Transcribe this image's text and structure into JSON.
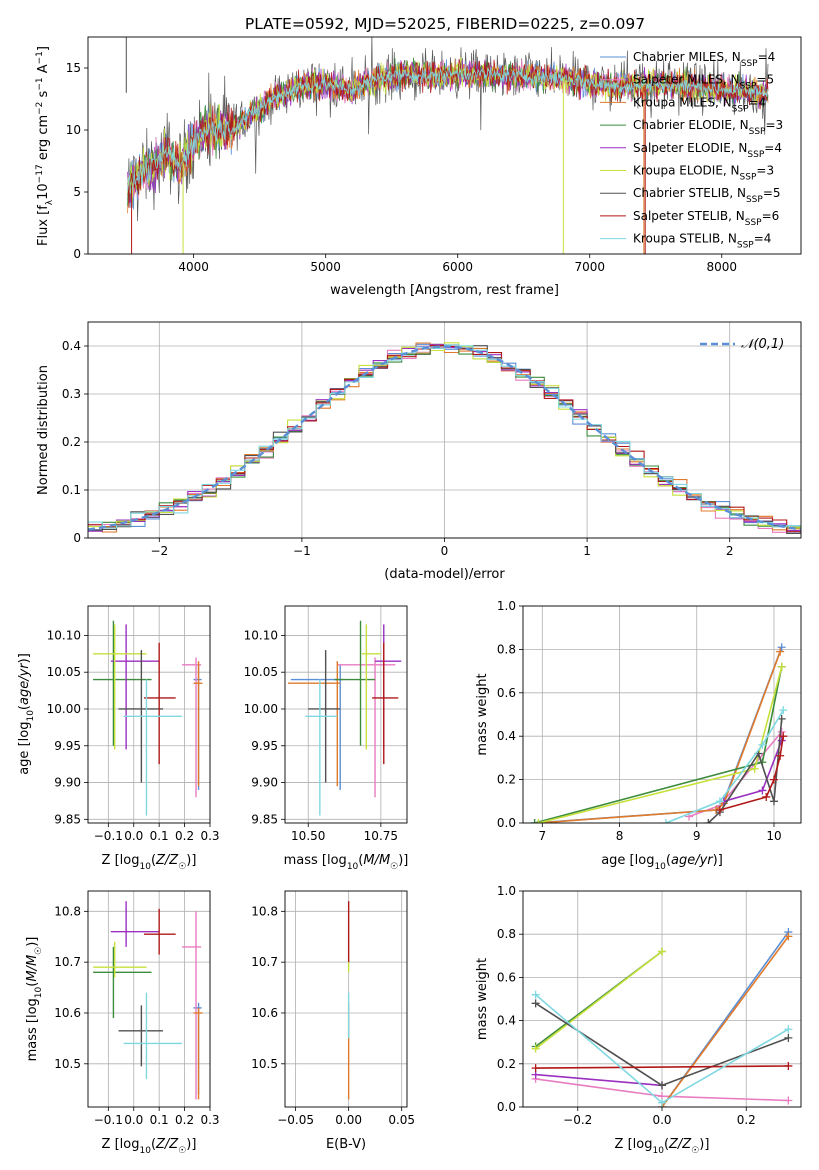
{
  "figure": {
    "title": "PLATE=0592, MJD=52025, FIBERID=0225, z=0.097"
  },
  "series_styles": [
    {
      "name": "Chabrier MILES",
      "nssp": "4",
      "color": "#5b8fd6"
    },
    {
      "name": "Salpeter MILES",
      "nssp": "5",
      "color": "#e87cc0"
    },
    {
      "name": "Kroupa MILES",
      "nssp": "4",
      "color": "#e07a2a"
    },
    {
      "name": "Chabrier ELODIE",
      "nssp": "3",
      "color": "#3c8c3c"
    },
    {
      "name": "Salpeter ELODIE",
      "nssp": "4",
      "color": "#9b2fc0"
    },
    {
      "name": "Kroupa ELODIE",
      "nssp": "3",
      "color": "#c6e03c"
    },
    {
      "name": "Chabrier STELIB",
      "nssp": "5",
      "color": "#505050"
    },
    {
      "name": "Salpeter STELIB",
      "nssp": "6",
      "color": "#b01818"
    },
    {
      "name": "Kroupa STELIB",
      "nssp": "4",
      "color": "#7fd8e0"
    }
  ],
  "chart_data": [
    {
      "id": "spectrum",
      "type": "line",
      "xlabel": "wavelength [Angstrom, rest frame]",
      "ylabel": "Flux [f_λ10^-17 erg cm^-2 s^-1 A^-1]",
      "xlim": [
        3200,
        8600
      ],
      "ylim": [
        0,
        17.5
      ],
      "xticks": [
        4000,
        5000,
        6000,
        7000,
        8000
      ],
      "yticks": [
        0,
        5,
        10,
        15
      ],
      "grid": false,
      "legend_position": "right",
      "x_range": [
        3500,
        8350
      ],
      "flux_profile": [
        [
          3500,
          5.2
        ],
        [
          3600,
          6.5
        ],
        [
          3700,
          7.0
        ],
        [
          3800,
          8.3
        ],
        [
          3900,
          7.0
        ],
        [
          4000,
          9.2
        ],
        [
          4100,
          10.0
        ],
        [
          4300,
          10.2
        ],
        [
          4400,
          11.0
        ],
        [
          4600,
          12.5
        ],
        [
          4800,
          13.5
        ],
        [
          5000,
          13.7
        ],
        [
          5200,
          13.2
        ],
        [
          5400,
          14.2
        ],
        [
          5600,
          14.5
        ],
        [
          5800,
          14.3
        ],
        [
          6000,
          14.6
        ],
        [
          6200,
          14.5
        ],
        [
          6500,
          14.3
        ],
        [
          6800,
          14.2
        ],
        [
          7000,
          13.8
        ],
        [
          7200,
          13.5
        ],
        [
          7500,
          13.7
        ],
        [
          7800,
          13.5
        ],
        [
          8100,
          13.2
        ],
        [
          8350,
          13.0
        ]
      ]
    },
    {
      "id": "residuals",
      "type": "step",
      "xlabel": "(data-model)/error",
      "ylabel": "Normed distribution",
      "xlim": [
        -2.5,
        2.5
      ],
      "ylim": [
        0,
        0.45
      ],
      "xticks": [
        -2,
        -1,
        0,
        1,
        2
      ],
      "yticks": [
        0.0,
        0.1,
        0.2,
        0.3,
        0.4
      ],
      "grid": true,
      "reference_curve": {
        "label": "𝒩(0,1)",
        "color": "#5b8fd6",
        "style": "dashed"
      }
    },
    {
      "id": "age_vs_Z",
      "type": "errorbar",
      "xlabel": "Z [log10(Z/Z☉)]",
      "ylabel": "age  [log10(age/yr)]",
      "xlim": [
        -0.18,
        0.3
      ],
      "ylim": [
        9.845,
        10.14
      ],
      "xticks": [
        -0.1,
        0.0,
        0.1,
        0.2,
        0.3
      ],
      "xticklabels": [
        "−0.1",
        "0.0",
        "0.1",
        "0.2",
        "0.3"
      ],
      "yticks": [
        9.85,
        9.9,
        9.95,
        10.0,
        10.05,
        10.1
      ],
      "yticklabels": [
        "9.85",
        "9.90",
        "9.95",
        "10.00",
        "10.05",
        "10.10"
      ],
      "grid": true,
      "points": [
        {
          "series": 0,
          "x": 0.255,
          "y": 10.04,
          "xerr": [
            0.02,
            0.012
          ],
          "yerr": [
            0.15,
            0.02
          ]
        },
        {
          "series": 1,
          "x": 0.245,
          "y": 10.06,
          "xerr": [
            0.055,
            0.02
          ],
          "yerr": [
            0.18,
            0.01
          ]
        },
        {
          "series": 2,
          "x": 0.255,
          "y": 10.035,
          "xerr": [
            0.02,
            0.015
          ],
          "yerr": [
            0.14,
            0.03
          ]
        },
        {
          "series": 3,
          "x": -0.08,
          "y": 10.04,
          "xerr": [
            0.08,
            0.15
          ],
          "yerr": [
            0.09,
            0.08
          ]
        },
        {
          "series": 4,
          "x": -0.03,
          "y": 10.065,
          "xerr": [
            0.06,
            0.13
          ],
          "yerr": [
            0.12,
            0.05
          ]
        },
        {
          "series": 5,
          "x": -0.075,
          "y": 10.075,
          "xerr": [
            0.085,
            0.125
          ],
          "yerr": [
            0.13,
            0.04
          ]
        },
        {
          "series": 6,
          "x": 0.03,
          "y": 10.0,
          "xerr": [
            0.09,
            0.085
          ],
          "yerr": [
            0.1,
            0.08
          ]
        },
        {
          "series": 7,
          "x": 0.1,
          "y": 10.015,
          "xerr": [
            0.06,
            0.065
          ],
          "yerr": [
            0.09,
            0.075
          ]
        },
        {
          "series": 8,
          "x": 0.05,
          "y": 9.99,
          "xerr": [
            0.09,
            0.14
          ],
          "yerr": [
            0.135,
            0.05
          ]
        }
      ]
    },
    {
      "id": "age_vs_mass",
      "type": "errorbar",
      "xlabel": "mass [log10(M/M☉)]",
      "ylabel": "",
      "xlim": [
        10.42,
        10.84
      ],
      "ylim": [
        9.845,
        10.14
      ],
      "xticks": [
        10.5,
        10.75
      ],
      "xticklabels": [
        "10.50",
        "10.75"
      ],
      "yticks": [
        9.85,
        9.9,
        9.95,
        10.0,
        10.05,
        10.1
      ],
      "yticklabels": [
        "9.85",
        "9.90",
        "9.95",
        "10.00",
        "10.05",
        "10.10"
      ],
      "grid": true,
      "points": [
        {
          "series": 0,
          "x": 10.61,
          "y": 10.04,
          "xerr": [
            0.17,
            0.01
          ],
          "yerr": [
            0.15,
            0.02
          ]
        },
        {
          "series": 1,
          "x": 10.73,
          "y": 10.06,
          "xerr": [
            0.13,
            0.07
          ],
          "yerr": [
            0.18,
            0.01
          ]
        },
        {
          "series": 2,
          "x": 10.6,
          "y": 10.035,
          "xerr": [
            0.17,
            0.01
          ],
          "yerr": [
            0.14,
            0.03
          ]
        },
        {
          "series": 3,
          "x": 10.68,
          "y": 10.04,
          "xerr": [
            0.09,
            0.05
          ],
          "yerr": [
            0.09,
            0.08
          ]
        },
        {
          "series": 4,
          "x": 10.76,
          "y": 10.065,
          "xerr": [
            0.03,
            0.06
          ],
          "yerr": [
            0.12,
            0.05
          ]
        },
        {
          "series": 5,
          "x": 10.7,
          "y": 10.075,
          "xerr": [
            0.015,
            0.05
          ],
          "yerr": [
            0.13,
            0.04
          ]
        },
        {
          "series": 6,
          "x": 10.56,
          "y": 10.0,
          "xerr": [
            0.06,
            0.05
          ],
          "yerr": [
            0.1,
            0.08
          ]
        },
        {
          "series": 7,
          "x": 10.76,
          "y": 10.015,
          "xerr": [
            0.04,
            0.05
          ],
          "yerr": [
            0.09,
            0.075
          ]
        },
        {
          "series": 8,
          "x": 10.54,
          "y": 9.99,
          "xerr": [
            0.05,
            0.06
          ],
          "yerr": [
            0.135,
            0.05
          ]
        }
      ]
    },
    {
      "id": "massweight_vs_age",
      "type": "line",
      "xlabel": "age  [log10(age/yr)]",
      "ylabel": "mass weight",
      "xlim": [
        6.75,
        10.35
      ],
      "ylim": [
        0.0,
        1.0
      ],
      "xticks": [
        7,
        8,
        9,
        10
      ],
      "xticklabels": [
        "7",
        "8",
        "9",
        "10"
      ],
      "yticks": [
        0.0,
        0.2,
        0.4,
        0.6,
        0.8,
        1.0
      ],
      "yticklabels": [
        "0.0",
        "0.2",
        "0.4",
        "0.6",
        "0.8",
        "1.0"
      ],
      "grid": true,
      "series": [
        {
          "series": 0,
          "points": [
            [
              6.9,
              0.0
            ],
            [
              9.25,
              0.06
            ],
            [
              9.35,
              0.1
            ],
            [
              10.1,
              0.81
            ]
          ]
        },
        {
          "series": 1,
          "points": [
            [
              8.9,
              0.03
            ],
            [
              9.3,
              0.08
            ],
            [
              10.1,
              0.42
            ]
          ]
        },
        {
          "series": 2,
          "points": [
            [
              6.95,
              0.0
            ],
            [
              9.25,
              0.06
            ],
            [
              9.35,
              0.09
            ],
            [
              10.08,
              0.79
            ]
          ]
        },
        {
          "series": 3,
          "points": [
            [
              6.9,
              0.0
            ],
            [
              9.85,
              0.28
            ],
            [
              10.1,
              0.72
            ]
          ]
        },
        {
          "series": 4,
          "points": [
            [
              9.35,
              0.1
            ],
            [
              9.85,
              0.15
            ],
            [
              10.1,
              0.38
            ]
          ]
        },
        {
          "series": 5,
          "points": [
            [
              6.95,
              0.0
            ],
            [
              9.75,
              0.25
            ],
            [
              10.1,
              0.72
            ]
          ]
        },
        {
          "series": 6,
          "points": [
            [
              9.15,
              0.0
            ],
            [
              9.3,
              0.05
            ],
            [
              9.8,
              0.32
            ],
            [
              10.0,
              0.1
            ],
            [
              10.1,
              0.48
            ]
          ]
        },
        {
          "series": 7,
          "points": [
            [
              9.3,
              0.06
            ],
            [
              9.9,
              0.12
            ],
            [
              10.0,
              0.2
            ],
            [
              10.08,
              0.31
            ],
            [
              10.12,
              0.4
            ]
          ]
        },
        {
          "series": 8,
          "points": [
            [
              8.6,
              0.0
            ],
            [
              9.3,
              0.1
            ],
            [
              9.85,
              0.36
            ],
            [
              10.12,
              0.52
            ]
          ]
        }
      ]
    },
    {
      "id": "mass_vs_Z",
      "type": "errorbar",
      "xlabel": "Z [log10(Z/Z☉)]",
      "ylabel": "mass [log10(M/M☉)]",
      "xlim": [
        -0.18,
        0.3
      ],
      "ylim": [
        10.415,
        10.84
      ],
      "xticks": [
        -0.1,
        0.0,
        0.1,
        0.2,
        0.3
      ],
      "xticklabels": [
        "−0.1",
        "0.0",
        "0.1",
        "0.2",
        "0.3"
      ],
      "yticks": [
        10.5,
        10.6,
        10.7,
        10.8
      ],
      "yticklabels": [
        "10.5",
        "10.6",
        "10.7",
        "10.8"
      ],
      "grid": true,
      "points": [
        {
          "series": 0,
          "x": 0.255,
          "y": 10.61,
          "xerr": [
            0.02,
            0.012
          ],
          "yerr": [
            0.17,
            0.01
          ]
        },
        {
          "series": 1,
          "x": 0.245,
          "y": 10.73,
          "xerr": [
            0.055,
            0.02
          ],
          "yerr": [
            0.3,
            0.07
          ]
        },
        {
          "series": 2,
          "x": 0.255,
          "y": 10.6,
          "xerr": [
            0.02,
            0.015
          ],
          "yerr": [
            0.17,
            0.01
          ]
        },
        {
          "series": 3,
          "x": -0.08,
          "y": 10.68,
          "xerr": [
            0.08,
            0.15
          ],
          "yerr": [
            0.09,
            0.05
          ]
        },
        {
          "series": 4,
          "x": -0.03,
          "y": 10.76,
          "xerr": [
            0.06,
            0.13
          ],
          "yerr": [
            0.03,
            0.06
          ]
        },
        {
          "series": 5,
          "x": -0.075,
          "y": 10.69,
          "xerr": [
            0.085,
            0.125
          ],
          "yerr": [
            0.02,
            0.05
          ]
        },
        {
          "series": 6,
          "x": 0.03,
          "y": 10.565,
          "xerr": [
            0.09,
            0.085
          ],
          "yerr": [
            0.07,
            0.05
          ]
        },
        {
          "series": 7,
          "x": 0.1,
          "y": 10.755,
          "xerr": [
            0.06,
            0.065
          ],
          "yerr": [
            0.04,
            0.05
          ]
        },
        {
          "series": 8,
          "x": 0.05,
          "y": 10.54,
          "xerr": [
            0.09,
            0.14
          ],
          "yerr": [
            0.07,
            0.1
          ]
        }
      ]
    },
    {
      "id": "mass_vs_ebv",
      "type": "errorbar",
      "xlabel": "E(B-V)",
      "ylabel": "",
      "xlim": [
        -0.06,
        0.055
      ],
      "ylim": [
        10.415,
        10.84
      ],
      "xticks": [
        -0.05,
        0.0,
        0.05
      ],
      "xticklabels": [
        "−0.05",
        "0.00",
        "0.05"
      ],
      "yticks": [
        10.5,
        10.6,
        10.7,
        10.8
      ],
      "yticklabels": [
        "10.5",
        "10.6",
        "10.7",
        "10.8"
      ],
      "grid": true,
      "points": [
        {
          "series": 2,
          "x": 0.0,
          "y": 10.6,
          "xerr": [
            0,
            0
          ],
          "yerr": [
            0.17,
            0.02
          ]
        },
        {
          "series": 7,
          "x": 0.0,
          "y": 10.76,
          "xerr": [
            0,
            0
          ],
          "yerr": [
            0.06,
            0.06
          ]
        },
        {
          "series": 5,
          "x": 0.0,
          "y": 10.7,
          "xerr": [
            0,
            0
          ],
          "yerr": [
            0.02,
            0.0
          ]
        },
        {
          "series": 8,
          "x": 0.0,
          "y": 10.58,
          "xerr": [
            0,
            0
          ],
          "yerr": [
            0.03,
            0.06
          ]
        }
      ]
    },
    {
      "id": "massweight_vs_Z",
      "type": "line",
      "xlabel": "Z [log10(Z/Z☉)]",
      "ylabel": "mass weight",
      "xlim": [
        -0.33,
        0.33
      ],
      "ylim": [
        0.0,
        1.0
      ],
      "xticks": [
        -0.2,
        0.0,
        0.2
      ],
      "xticklabels": [
        "−0.2",
        "0.0",
        "0.2"
      ],
      "yticks": [
        0.0,
        0.2,
        0.4,
        0.6,
        0.8,
        1.0
      ],
      "yticklabels": [
        "0.0",
        "0.2",
        "0.4",
        "0.6",
        "0.8",
        "1.0"
      ],
      "grid": true,
      "series": [
        {
          "series": 0,
          "points": [
            [
              0.0,
              0.0
            ],
            [
              0.3,
              0.81
            ]
          ]
        },
        {
          "series": 1,
          "points": [
            [
              -0.3,
              0.13
            ],
            [
              0.0,
              0.05
            ],
            [
              0.3,
              0.03
            ]
          ]
        },
        {
          "series": 2,
          "points": [
            [
              0.0,
              0.0
            ],
            [
              0.3,
              0.79
            ]
          ]
        },
        {
          "series": 3,
          "points": [
            [
              -0.3,
              0.28
            ],
            [
              0.0,
              0.72
            ]
          ]
        },
        {
          "series": 4,
          "points": [
            [
              -0.3,
              0.15
            ],
            [
              0.0,
              0.1
            ]
          ]
        },
        {
          "series": 5,
          "points": [
            [
              -0.3,
              0.27
            ],
            [
              0.0,
              0.72
            ]
          ]
        },
        {
          "series": 6,
          "points": [
            [
              -0.3,
              0.48
            ],
            [
              0.0,
              0.1
            ],
            [
              0.3,
              0.32
            ]
          ]
        },
        {
          "series": 7,
          "points": [
            [
              -0.3,
              0.18
            ],
            [
              0.3,
              0.19
            ]
          ]
        },
        {
          "series": 8,
          "points": [
            [
              -0.3,
              0.52
            ],
            [
              0.0,
              0.02
            ],
            [
              0.3,
              0.36
            ]
          ]
        }
      ]
    }
  ]
}
